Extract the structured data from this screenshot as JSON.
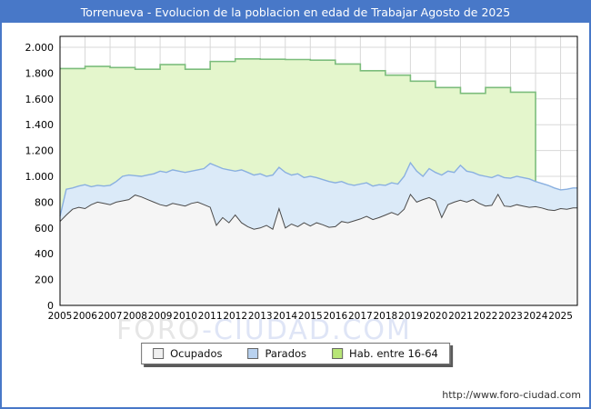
{
  "window": {
    "title": "Torrenueva - Evolucion de la poblacion en edad de Trabajar Agosto de 2025"
  },
  "watermark": {
    "part1": "FORO",
    "part2": "-CIUDAD.COM"
  },
  "footer": {
    "url": "http://www.foro-ciudad.com"
  },
  "colors": {
    "accent": "#4878c8",
    "grid": "#d8d8d8",
    "axis_border": "#000000",
    "tick_text": "#000000"
  },
  "chart_data": {
    "type": "area",
    "title": "Torrenueva - Evolucion de la poblacion en edad de Trabajar Agosto de 2025",
    "x_axis": {
      "min": 2005,
      "max": 2025.67,
      "tick_labels": [
        "2005",
        "2006",
        "2007",
        "2008",
        "2009",
        "2010",
        "2011",
        "2012",
        "2013",
        "2014",
        "2015",
        "2016",
        "2017",
        "2018",
        "2019",
        "2020",
        "2021",
        "2022",
        "2023",
        "2024",
        "2025"
      ]
    },
    "y_axis": {
      "min": 0,
      "max": 2000,
      "tick_values": [
        0,
        200,
        400,
        600,
        800,
        1000,
        1200,
        1400,
        1600,
        1800,
        2000
      ],
      "tick_labels": [
        "0",
        "200",
        "400",
        "600",
        "800",
        "1.000",
        "1.200",
        "1.400",
        "1.600",
        "1.800",
        "2.000"
      ]
    },
    "grid": true,
    "legend": {
      "position": "bottom",
      "items": [
        {
          "label": "Ocupados",
          "swatch": "#f0f0f0"
        },
        {
          "label": "Parados",
          "swatch": "#b9d2f0"
        },
        {
          "label": "Hab. entre 16-64",
          "swatch": "#b7e576"
        }
      ]
    },
    "series": [
      {
        "key": "hab",
        "name": "Hab. entre 16-64",
        "type": "step_area_annual",
        "x_start": 2005,
        "x_step": 1,
        "fill": "#e4f6cc",
        "line": "#7cbd7c",
        "values": [
          1835,
          1852,
          1843,
          1830,
          1866,
          1830,
          1890,
          1910,
          1907,
          1905,
          1900,
          1870,
          1818,
          1784,
          1737,
          1688,
          1643,
          1688,
          1652
        ]
      },
      {
        "key": "parados",
        "name": "Parados",
        "note": "line is cumulative Ocupados+Parados",
        "type": "area",
        "x_start": 2005,
        "x_step": 0.25,
        "fill": "#dbeaf8",
        "line": "#8ab0e0",
        "values": [
          690,
          900,
          910,
          925,
          935,
          920,
          930,
          925,
          930,
          960,
          1000,
          1010,
          1005,
          1000,
          1010,
          1020,
          1040,
          1030,
          1050,
          1040,
          1030,
          1040,
          1050,
          1060,
          1100,
          1080,
          1060,
          1050,
          1040,
          1050,
          1030,
          1010,
          1020,
          1000,
          1010,
          1070,
          1030,
          1010,
          1020,
          990,
          1000,
          990,
          975,
          960,
          950,
          960,
          940,
          930,
          940,
          950,
          925,
          935,
          930,
          950,
          940,
          1000,
          1105,
          1040,
          1000,
          1060,
          1030,
          1010,
          1040,
          1030,
          1085,
          1040,
          1030,
          1010,
          1000,
          990,
          1010,
          990,
          985,
          1000,
          990,
          980,
          960,
          945,
          930,
          910,
          895,
          900,
          910
        ]
      },
      {
        "key": "ocupados",
        "name": "Ocupados",
        "type": "area",
        "x_start": 2005,
        "x_step": 0.25,
        "fill": "#f5f5f5",
        "line": "#4a4a4a",
        "values": [
          650,
          700,
          745,
          760,
          750,
          780,
          800,
          790,
          780,
          800,
          810,
          820,
          855,
          840,
          820,
          800,
          780,
          770,
          790,
          780,
          770,
          790,
          800,
          780,
          760,
          620,
          680,
          640,
          700,
          640,
          610,
          590,
          600,
          620,
          590,
          750,
          600,
          630,
          610,
          640,
          615,
          640,
          625,
          605,
          610,
          650,
          640,
          655,
          670,
          690,
          665,
          680,
          700,
          720,
          700,
          745,
          860,
          800,
          820,
          835,
          810,
          680,
          780,
          800,
          815,
          800,
          820,
          790,
          770,
          775,
          860,
          770,
          765,
          780,
          770,
          760,
          765,
          755,
          740,
          735,
          750,
          745,
          755
        ]
      }
    ]
  }
}
